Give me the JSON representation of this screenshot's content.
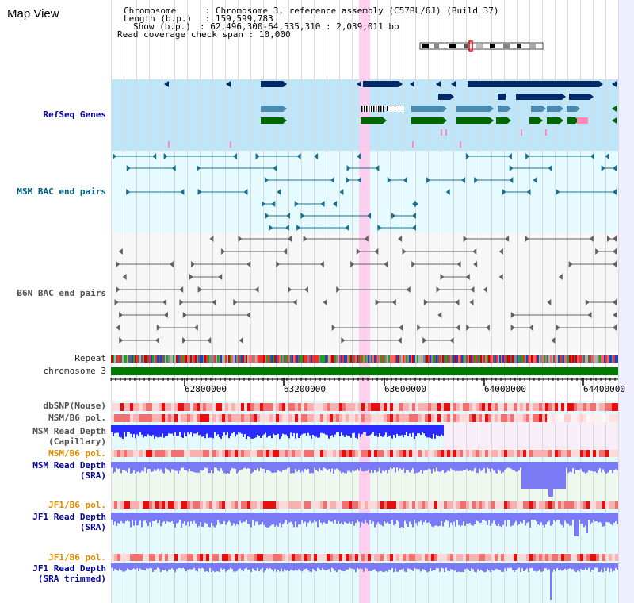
{
  "app": {
    "title": "Map View"
  },
  "info": {
    "chromosome_key": "Chromosome",
    "chromosome_val": "Chromosome 3, reference assembly (C57BL/6J) (Build 37)",
    "length_key": "Length (b.p.)",
    "length_val": "159,599,783",
    "show_key": "Show (b.p.)",
    "show_val": "62,496,300-64,535,310 : 2,039,011 bp",
    "span_key": "Read coverage check span",
    "span_val": "10,000"
  },
  "tracks": {
    "refseq": "RefSeq Genes",
    "msm_bac": "MSM BAC end pairs",
    "b6n_bac": "B6N BAC end pairs",
    "repeat": "Repeat",
    "chrom": "chromosome 3",
    "dbsnp": "dbSNP(Mouse)",
    "msm_pol_1": "MSM/B6 pol.",
    "msm_depth_cap_1": "MSM Read Depth",
    "msm_depth_cap_2": "(Capillary)",
    "msm_pol_2": "MSM/B6 pol.",
    "msm_depth_sra_1": "MSM Read Depth",
    "msm_depth_sra_2": "(SRA)",
    "jf1_pol_1": "JF1/B6 pol.",
    "jf1_depth_sra_1": "JF1 Read Depth",
    "jf1_depth_sra_2": "(SRA)",
    "jf1_pol_2": "JF1/B6 pol.",
    "jf1_depth_trim_1": "JF1 Read Depth",
    "jf1_depth_trim_2": "(SRA trimmed)"
  },
  "axis": {
    "ticks": [
      "62800000",
      "63200000",
      "63600000",
      "64000000",
      "64400000"
    ]
  },
  "colors": {
    "gene_navy": "#002a66",
    "gene_steel": "#4a8ab0",
    "gene_green": "#006600",
    "gene_pink": "#ff88bb",
    "bac_teal": "#1a7090",
    "bac_grey": "#606060",
    "depth_blue": "#2a2aff",
    "depth_light": "#7a7af5",
    "highlight": "#ffc8ec",
    "chrom_green": "#007a00"
  }
}
